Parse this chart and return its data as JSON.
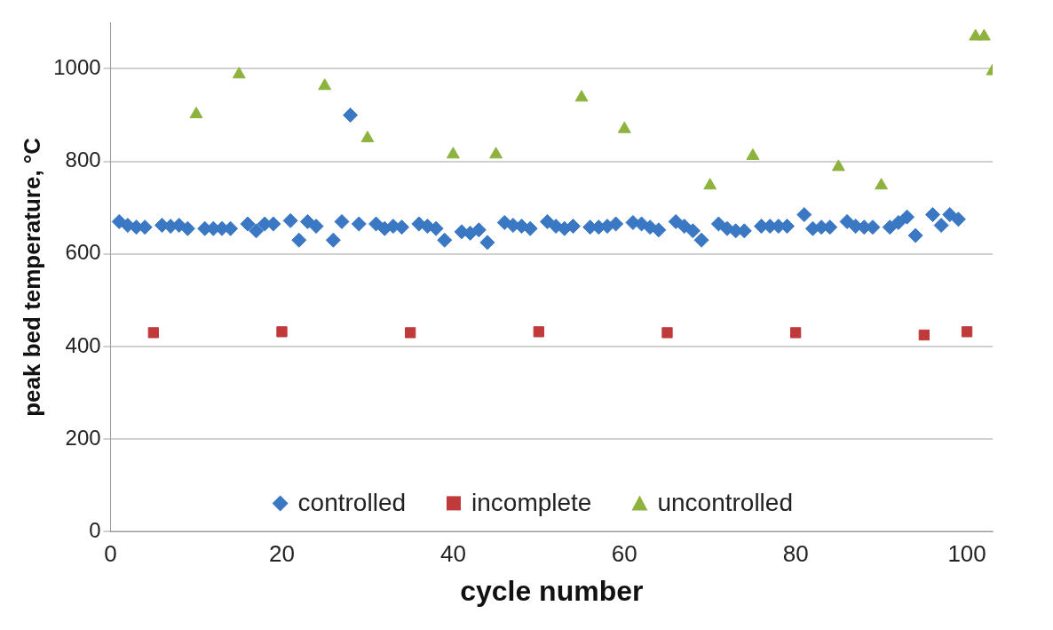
{
  "chart_data": {
    "type": "scatter",
    "xlabel": "cycle number",
    "ylabel": "peak bed temperature, °C",
    "xlim": [
      0,
      103
    ],
    "xticks": [
      0,
      20,
      40,
      60,
      80,
      100
    ],
    "ylim": [
      0,
      1100
    ],
    "yticks": [
      0,
      200,
      400,
      600,
      800,
      1000
    ],
    "grid": "y",
    "legend": "bottom",
    "series": [
      {
        "name": "controlled",
        "color": "#3a78c4",
        "marker": "diamond",
        "x": [
          1,
          2,
          3,
          4,
          6,
          7,
          8,
          9,
          11,
          12,
          13,
          14,
          16,
          17,
          18,
          19,
          21,
          22,
          23,
          24,
          26,
          27,
          28,
          29,
          31,
          32,
          33,
          34,
          36,
          37,
          38,
          39,
          41,
          42,
          43,
          44,
          46,
          47,
          48,
          49,
          51,
          52,
          53,
          54,
          56,
          57,
          58,
          59,
          61,
          62,
          63,
          64,
          66,
          67,
          68,
          69,
          71,
          72,
          73,
          74,
          76,
          77,
          78,
          79,
          81,
          82,
          83,
          84,
          86,
          87,
          88,
          89,
          91,
          92,
          93,
          94,
          96,
          97,
          98,
          99
        ],
        "values": [
          670,
          662,
          658,
          658,
          662,
          660,
          662,
          655,
          655,
          655,
          655,
          655,
          665,
          650,
          665,
          665,
          672,
          630,
          670,
          660,
          630,
          670,
          900,
          665,
          665,
          655,
          660,
          658,
          665,
          660,
          655,
          630,
          648,
          645,
          652,
          625,
          668,
          662,
          660,
          655,
          670,
          660,
          655,
          660,
          658,
          658,
          660,
          665,
          668,
          665,
          658,
          652,
          670,
          660,
          650,
          630,
          665,
          655,
          650,
          650,
          660,
          660,
          660,
          660,
          685,
          655,
          658,
          658,
          670,
          660,
          658,
          658,
          658,
          668,
          680,
          640,
          685,
          662,
          685,
          675
        ]
      },
      {
        "name": "incomplete",
        "color": "#c0393b",
        "marker": "square",
        "x": [
          5,
          20,
          35,
          50,
          65,
          80,
          95,
          100
        ],
        "values": [
          430,
          432,
          430,
          432,
          430,
          430,
          425,
          432
        ]
      },
      {
        "name": "uncontrolled",
        "color": "#8db33e",
        "marker": "triangle",
        "x": [
          10,
          15,
          25,
          30,
          40,
          45,
          55,
          60,
          70,
          75,
          85,
          90,
          101,
          102,
          103
        ],
        "values": [
          902,
          988,
          963,
          850,
          815,
          815,
          938,
          870,
          748,
          812,
          788,
          748,
          1070,
          1070,
          995
        ]
      }
    ]
  }
}
